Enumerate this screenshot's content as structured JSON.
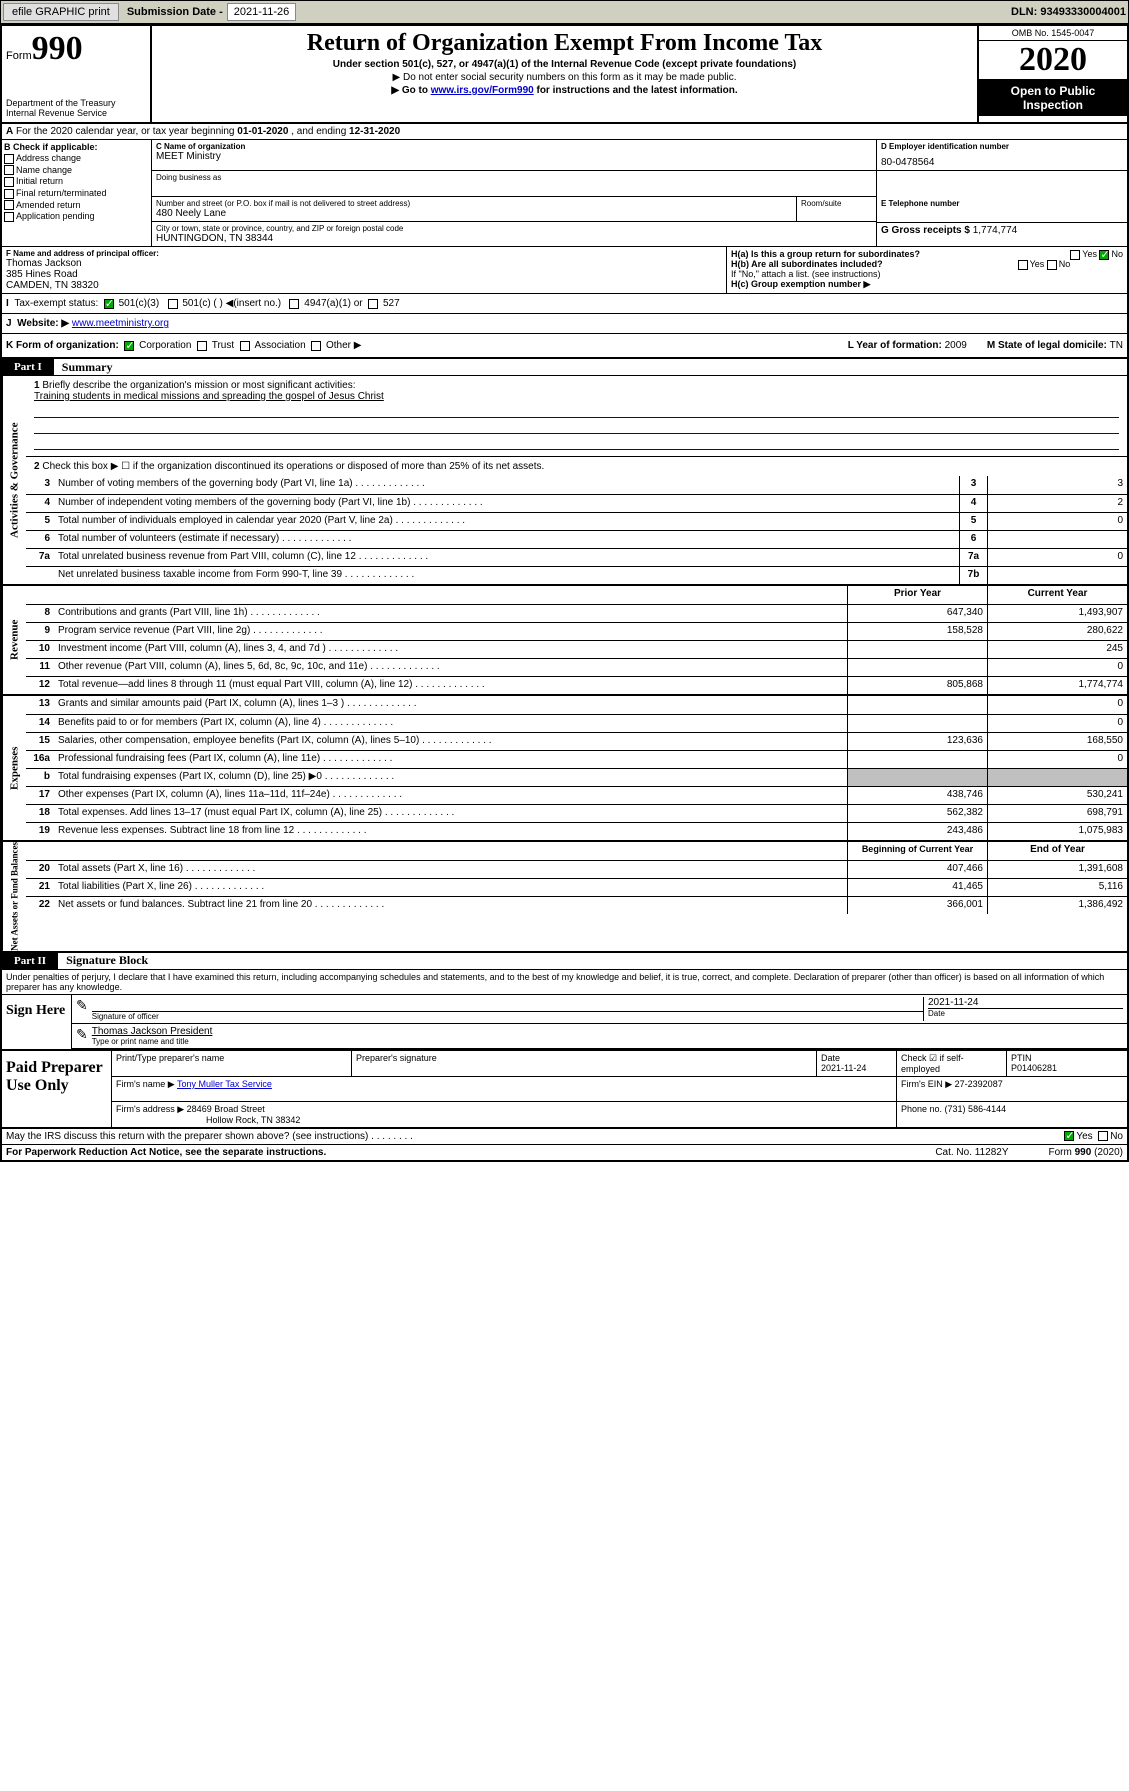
{
  "toolbar": {
    "efile": "efile GRAPHIC print",
    "submission_label": "Submission Date - ",
    "submission_date": "2021-11-26",
    "dln_label": "DLN: ",
    "dln": "93493330004001"
  },
  "header": {
    "form_label": "Form",
    "form_number": "990",
    "dept": "Department of the Treasury\nInternal Revenue Service",
    "title": "Return of Organization Exempt From Income Tax",
    "subtitle": "Under section 501(c), 527, or 4947(a)(1) of the Internal Revenue Code (except private foundations)",
    "note1": "▶ Do not enter social security numbers on this form as it may be made public.",
    "note2_pre": "▶ Go to ",
    "note2_link": "www.irs.gov/Form990",
    "note2_post": " for instructions and the latest information.",
    "omb": "OMB No. 1545-0047",
    "year": "2020",
    "inspection": "Open to Public Inspection"
  },
  "period": {
    "text_pre": "For the 2020 calendar year, or tax year beginning ",
    "begin": "01-01-2020",
    "text_mid": " , and ending ",
    "end": "12-31-2020"
  },
  "box_b": {
    "label": "B Check if applicable:",
    "opts": [
      "Address change",
      "Name change",
      "Initial return",
      "Final return/terminated",
      "Amended return",
      "Application pending"
    ]
  },
  "box_c": {
    "name_label": "C Name of organization",
    "name": "MEET Ministry",
    "dba_label": "Doing business as",
    "addr_label": "Number and street (or P.O. box if mail is not delivered to street address)",
    "addr": "480 Neely Lane",
    "room_label": "Room/suite",
    "city_label": "City or town, state or province, country, and ZIP or foreign postal code",
    "city": "HUNTINGDON, TN  38344"
  },
  "box_d": {
    "label": "D Employer identification number",
    "value": "80-0478564"
  },
  "box_e": {
    "label": "E Telephone number"
  },
  "box_g": {
    "label": "G Gross receipts $ ",
    "value": "1,774,774"
  },
  "box_f": {
    "label": "F  Name and address of principal officer:",
    "name": "Thomas Jackson",
    "addr1": "385 Hines Road",
    "addr2": "CAMDEN, TN  38320"
  },
  "box_h": {
    "a": "H(a)  Is this a group return for subordinates?",
    "a_yes": "Yes",
    "a_no": "No",
    "b": "H(b)  Are all subordinates included?",
    "b_yes": "Yes",
    "b_no": "No",
    "b_note": "If \"No,\" attach a list. (see instructions)",
    "c": "H(c)  Group exemption number ▶"
  },
  "row_i": {
    "label": "Tax-exempt status:",
    "opt1": "501(c)(3)",
    "opt2": "501(c) (  ) ◀(insert no.)",
    "opt3": "4947(a)(1) or",
    "opt4": "527"
  },
  "row_j": {
    "label": "J",
    "text": "Website: ▶ ",
    "url": "www.meetministry.org"
  },
  "row_k": {
    "label": "K Form of organization:",
    "opts": [
      "Corporation",
      "Trust",
      "Association",
      "Other ▶"
    ],
    "l_label": "L Year of formation: ",
    "l_val": "2009",
    "m_label": "M State of legal domicile: ",
    "m_val": "TN"
  },
  "part1": {
    "tab": "Part I",
    "title": "Summary"
  },
  "vtabs": {
    "gov": "Activities & Governance",
    "rev": "Revenue",
    "exp": "Expenses",
    "net": "Net Assets or Fund Balances"
  },
  "summary": {
    "line1_label": "1",
    "line1": "Briefly describe the organization's mission or most significant activities:",
    "mission": "Training students in medical missions and spreading the gospel of Jesus Christ",
    "line2_label": "2",
    "line2": "Check this box ▶ ☐  if the organization discontinued its operations or disposed of more than 25% of its net assets.",
    "rows_gov": [
      {
        "n": "3",
        "t": "Number of voting members of the governing body (Part VI, line 1a)",
        "c": "3",
        "v": "3"
      },
      {
        "n": "4",
        "t": "Number of independent voting members of the governing body (Part VI, line 1b)",
        "c": "4",
        "v": "2"
      },
      {
        "n": "5",
        "t": "Total number of individuals employed in calendar year 2020 (Part V, line 2a)",
        "c": "5",
        "v": "0"
      },
      {
        "n": "6",
        "t": "Total number of volunteers (estimate if necessary)",
        "c": "6",
        "v": ""
      },
      {
        "n": "7a",
        "t": "Total unrelated business revenue from Part VIII, column (C), line 12",
        "c": "7a",
        "v": "0"
      },
      {
        "n": "",
        "t": "Net unrelated business taxable income from Form 990-T, line 39",
        "c": "7b",
        "v": ""
      }
    ],
    "header_prior": "Prior Year",
    "header_current": "Current Year",
    "rows_rev": [
      {
        "n": "8",
        "t": "Contributions and grants (Part VIII, line 1h)",
        "p": "647,340",
        "c": "1,493,907"
      },
      {
        "n": "9",
        "t": "Program service revenue (Part VIII, line 2g)",
        "p": "158,528",
        "c": "280,622"
      },
      {
        "n": "10",
        "t": "Investment income (Part VIII, column (A), lines 3, 4, and 7d )",
        "p": "",
        "c": "245"
      },
      {
        "n": "11",
        "t": "Other revenue (Part VIII, column (A), lines 5, 6d, 8c, 9c, 10c, and 11e)",
        "p": "",
        "c": "0"
      },
      {
        "n": "12",
        "t": "Total revenue—add lines 8 through 11 (must equal Part VIII, column (A), line 12)",
        "p": "805,868",
        "c": "1,774,774"
      }
    ],
    "rows_exp": [
      {
        "n": "13",
        "t": "Grants and similar amounts paid (Part IX, column (A), lines 1–3 )",
        "p": "",
        "c": "0"
      },
      {
        "n": "14",
        "t": "Benefits paid to or for members (Part IX, column (A), line 4)",
        "p": "",
        "c": "0"
      },
      {
        "n": "15",
        "t": "Salaries, other compensation, employee benefits (Part IX, column (A), lines 5–10)",
        "p": "123,636",
        "c": "168,550"
      },
      {
        "n": "16a",
        "t": "Professional fundraising fees (Part IX, column (A), line 11e)",
        "p": "",
        "c": "0"
      },
      {
        "n": "b",
        "t": "Total fundraising expenses (Part IX, column (D), line 25) ▶0",
        "p": "gray",
        "c": "gray"
      },
      {
        "n": "17",
        "t": "Other expenses (Part IX, column (A), lines 11a–11d, 11f–24e)",
        "p": "438,746",
        "c": "530,241"
      },
      {
        "n": "18",
        "t": "Total expenses. Add lines 13–17 (must equal Part IX, column (A), line 25)",
        "p": "562,382",
        "c": "698,791"
      },
      {
        "n": "19",
        "t": "Revenue less expenses. Subtract line 18 from line 12",
        "p": "243,486",
        "c": "1,075,983"
      }
    ],
    "header_begin": "Beginning of Current Year",
    "header_end": "End of Year",
    "rows_net": [
      {
        "n": "20",
        "t": "Total assets (Part X, line 16)",
        "p": "407,466",
        "c": "1,391,608"
      },
      {
        "n": "21",
        "t": "Total liabilities (Part X, line 26)",
        "p": "41,465",
        "c": "5,116"
      },
      {
        "n": "22",
        "t": "Net assets or fund balances. Subtract line 21 from line 20",
        "p": "366,001",
        "c": "1,386,492"
      }
    ]
  },
  "part2": {
    "tab": "Part II",
    "title": "Signature Block"
  },
  "sig": {
    "perjury": "Under penalties of perjury, I declare that I have examined this return, including accompanying schedules and statements, and to the best of my knowledge and belief, it is true, correct, and complete. Declaration of preparer (other than officer) is based on all information of which preparer has any knowledge.",
    "sign_here": "Sign Here",
    "sig_officer": "Signature of officer",
    "date_label": "Date",
    "date": "2021-11-24",
    "name_title": "Thomas Jackson  President",
    "name_label": "Type or print name and title"
  },
  "paid": {
    "label": "Paid Preparer Use Only",
    "h_name": "Print/Type preparer's name",
    "h_sig": "Preparer's signature",
    "h_date": "Date",
    "date": "2021-11-24",
    "h_check": "Check ☑ if self-employed",
    "h_ptin": "PTIN",
    "ptin": "P01406281",
    "firm_name_label": "Firm's name    ▶",
    "firm_name": "Tony Muller Tax Service",
    "firm_ein_label": "Firm's EIN ▶",
    "firm_ein": "27-2392087",
    "firm_addr_label": "Firm's address ▶",
    "firm_addr1": "28469 Broad Street",
    "firm_addr2": "Hollow Rock, TN  38342",
    "phone_label": "Phone no. ",
    "phone": "(731) 586-4144"
  },
  "footer": {
    "discuss": "May the IRS discuss this return with the preparer shown above? (see instructions)",
    "yes": "Yes",
    "no": "No",
    "paperwork": "For Paperwork Reduction Act Notice, see the separate instructions.",
    "cat": "Cat. No. 11282Y",
    "form": "Form 990 (2020)"
  }
}
